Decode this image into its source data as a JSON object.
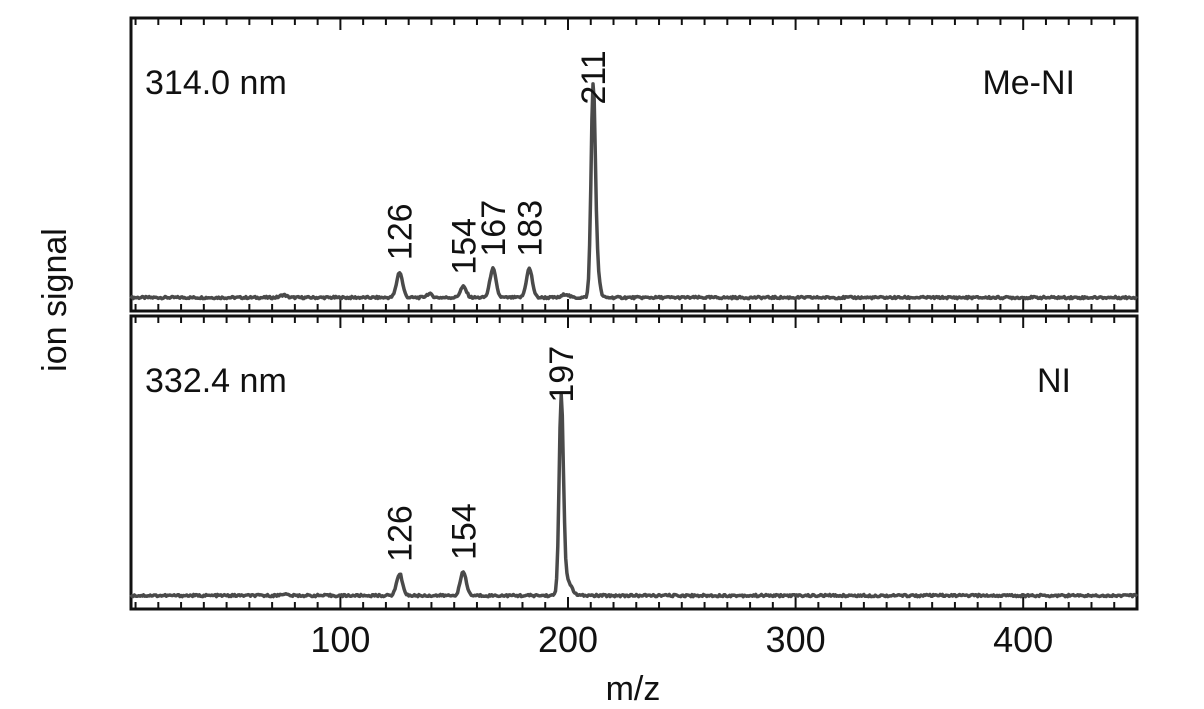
{
  "chart_data": {
    "type": "line",
    "xlabel": "m/z",
    "ylabel": "ion signal",
    "xlim": [
      8,
      450
    ],
    "xticks": [
      100,
      200,
      300,
      400
    ],
    "xtick_labels": [
      "100",
      "200",
      "300",
      "400"
    ],
    "minor_tick_step": 10,
    "grid": false,
    "line_color": "#4a4a4a",
    "panels": [
      {
        "wavelength_label": "314.0 nm",
        "compound_label": "Me-NI",
        "baseline": 0.03,
        "peaks": [
          {
            "mz": 75,
            "height": 0.015,
            "label": ""
          },
          {
            "mz": 126,
            "height": 0.14,
            "label": "126"
          },
          {
            "mz": 139,
            "height": 0.02,
            "label": ""
          },
          {
            "mz": 154,
            "height": 0.06,
            "label": "154"
          },
          {
            "mz": 167,
            "height": 0.16,
            "label": "167"
          },
          {
            "mz": 183,
            "height": 0.16,
            "label": "183"
          },
          {
            "mz": 199,
            "height": 0.02,
            "label": ""
          },
          {
            "mz": 211,
            "height": 1.0,
            "label": "211"
          },
          {
            "mz": 212,
            "height": 0.25,
            "label": ""
          }
        ]
      },
      {
        "wavelength_label": "332.4 nm",
        "compound_label": "NI",
        "baseline": 0.03,
        "peaks": [
          {
            "mz": 75,
            "height": 0.01,
            "label": ""
          },
          {
            "mz": 126,
            "height": 0.12,
            "label": "126"
          },
          {
            "mz": 154,
            "height": 0.13,
            "label": "154"
          },
          {
            "mz": 197,
            "height": 1.0,
            "label": "197"
          },
          {
            "mz": 198,
            "height": 0.15,
            "label": ""
          },
          {
            "mz": 201,
            "height": 0.05,
            "label": ""
          }
        ]
      }
    ]
  }
}
